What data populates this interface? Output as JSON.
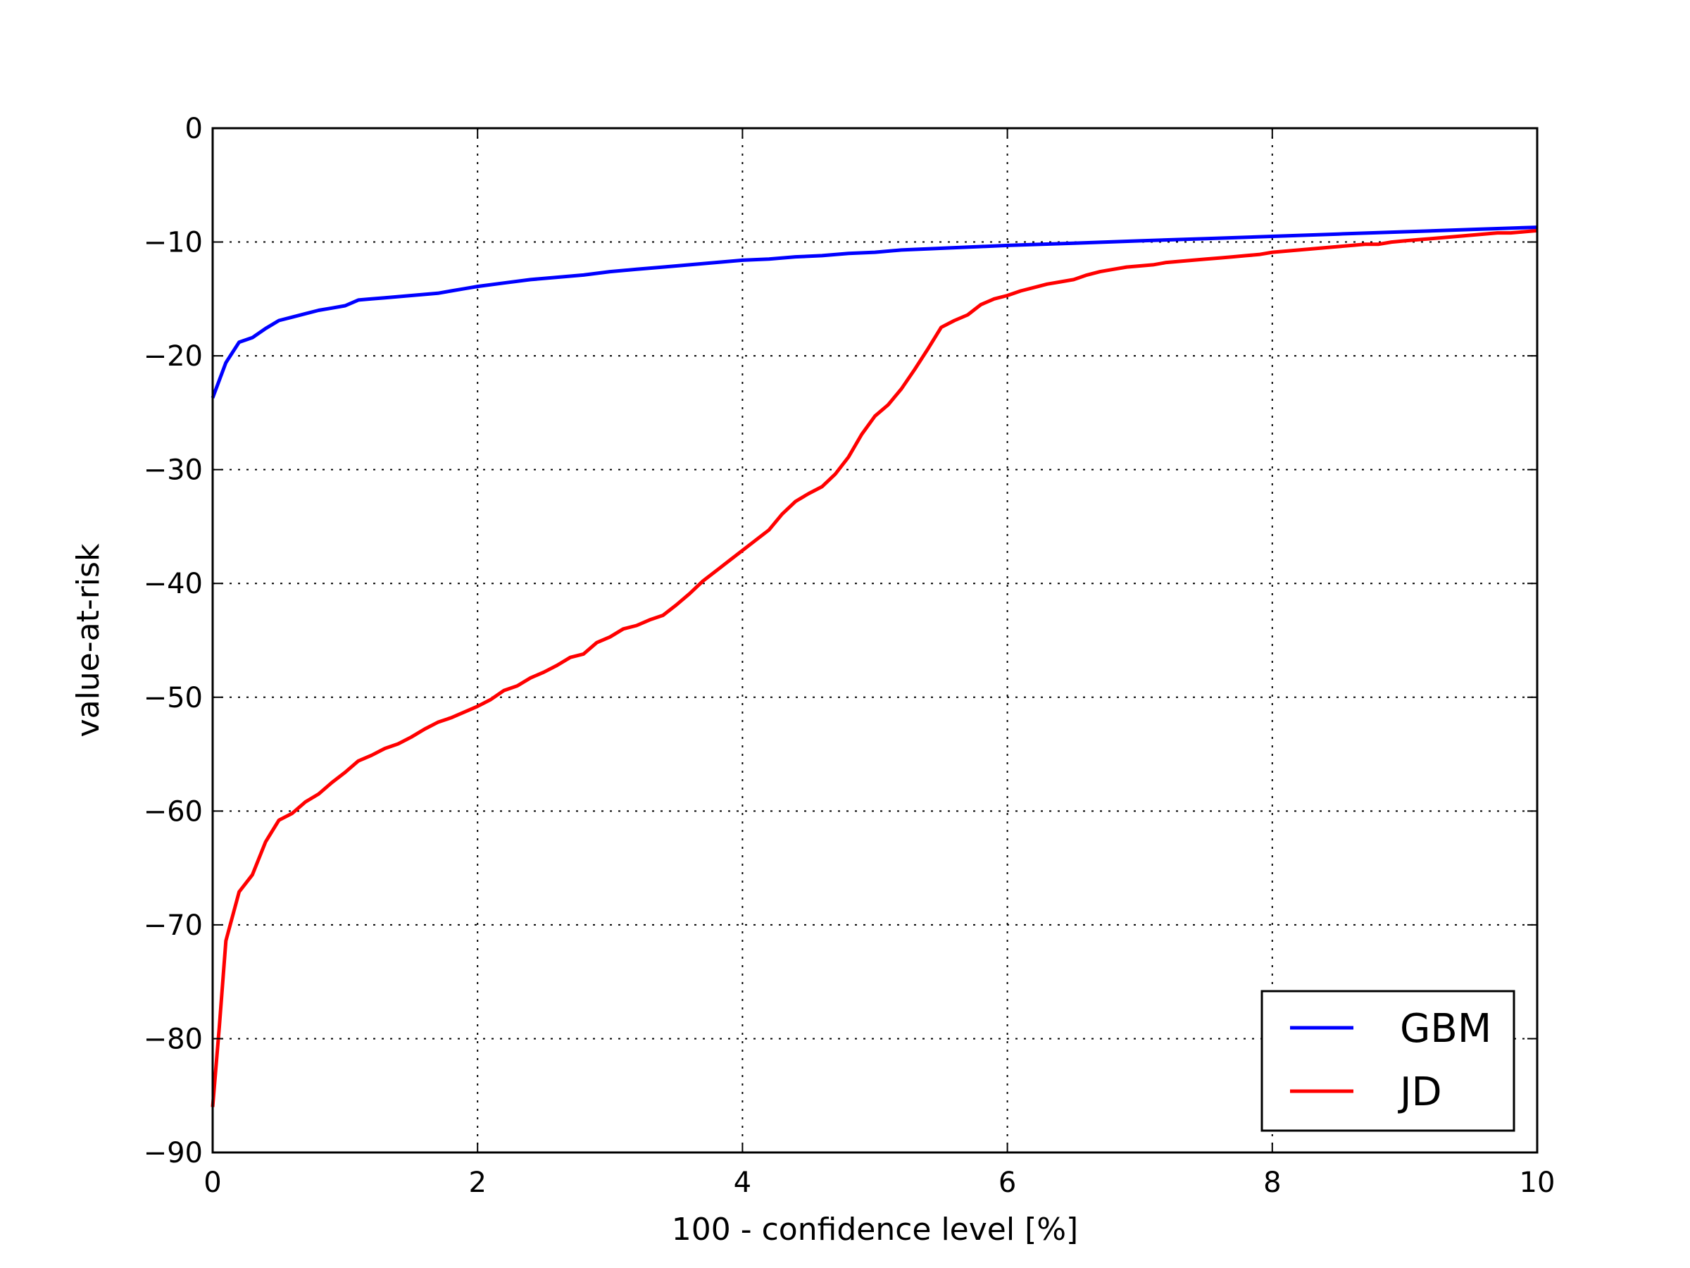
{
  "chart_data": {
    "type": "line",
    "title": "",
    "xlabel": "100 - confidence level [%]",
    "ylabel": "value-at-risk",
    "xlim": [
      0,
      10
    ],
    "ylim": [
      -90,
      0
    ],
    "xticks": [
      0,
      2,
      4,
      6,
      8,
      10
    ],
    "xtick_labels": [
      "0",
      "2",
      "4",
      "6",
      "8",
      "10"
    ],
    "yticks": [
      0,
      -10,
      -20,
      -30,
      -40,
      -50,
      -60,
      -70,
      -80,
      -90
    ],
    "ytick_labels": [
      "0",
      "−10",
      "−20",
      "−30",
      "−40",
      "−50",
      "−60",
      "−70",
      "−80",
      "−90"
    ],
    "grid": true,
    "legend_position": "bottom-right",
    "series": [
      {
        "name": "GBM",
        "color": "#0000ff",
        "x": [
          0,
          0.1,
          0.2,
          0.3,
          0.4,
          0.5,
          0.6,
          0.7,
          0.8,
          0.9,
          1.0,
          1.1,
          1.2,
          1.3,
          1.4,
          1.5,
          1.6,
          1.7,
          1.8,
          1.9,
          2.0,
          2.2,
          2.4,
          2.6,
          2.8,
          3.0,
          3.2,
          3.4,
          3.6,
          3.8,
          4.0,
          4.2,
          4.4,
          4.6,
          4.8,
          5.0,
          5.2,
          5.4,
          5.6,
          5.8,
          6.0,
          6.5,
          7.0,
          7.5,
          8.0,
          8.5,
          9.0,
          9.5,
          10.0
        ],
        "y": [
          -23.7,
          -20.6,
          -18.8,
          -18.4,
          -17.6,
          -16.9,
          -16.6,
          -16.3,
          -16.0,
          -15.8,
          -15.6,
          -15.1,
          -15.0,
          -14.9,
          -14.8,
          -14.7,
          -14.6,
          -14.5,
          -14.3,
          -14.1,
          -13.9,
          -13.6,
          -13.3,
          -13.1,
          -12.9,
          -12.6,
          -12.4,
          -12.2,
          -12.0,
          -11.8,
          -11.6,
          -11.5,
          -11.3,
          -11.2,
          -11.0,
          -10.9,
          -10.7,
          -10.6,
          -10.5,
          -10.4,
          -10.3,
          -10.1,
          -9.9,
          -9.7,
          -9.5,
          -9.3,
          -9.1,
          -8.9,
          -8.7
        ]
      },
      {
        "name": "JD",
        "color": "#ff0000",
        "x": [
          0,
          0.05,
          0.1,
          0.2,
          0.3,
          0.4,
          0.5,
          0.6,
          0.7,
          0.8,
          0.9,
          1.0,
          1.1,
          1.2,
          1.3,
          1.4,
          1.5,
          1.6,
          1.7,
          1.8,
          1.9,
          2.0,
          2.1,
          2.2,
          2.3,
          2.4,
          2.5,
          2.6,
          2.7,
          2.8,
          2.9,
          3.0,
          3.1,
          3.2,
          3.3,
          3.4,
          3.5,
          3.6,
          3.7,
          3.8,
          3.9,
          4.0,
          4.1,
          4.2,
          4.3,
          4.4,
          4.5,
          4.6,
          4.7,
          4.8,
          4.9,
          5.0,
          5.1,
          5.2,
          5.3,
          5.4,
          5.5,
          5.6,
          5.7,
          5.8,
          5.9,
          6.0,
          6.1,
          6.2,
          6.3,
          6.4,
          6.5,
          6.6,
          6.7,
          6.8,
          6.9,
          7.0,
          7.1,
          7.2,
          7.3,
          7.4,
          7.5,
          7.6,
          7.7,
          7.8,
          7.9,
          8.0,
          8.1,
          8.2,
          8.3,
          8.4,
          8.5,
          8.6,
          8.7,
          8.8,
          8.9,
          9.0,
          9.1,
          9.2,
          9.3,
          9.4,
          9.5,
          9.6,
          9.7,
          9.8,
          9.9,
          10.0
        ],
        "y": [
          -86.0,
          -79.0,
          -71.4,
          -67.1,
          -65.6,
          -62.7,
          -60.8,
          -60.2,
          -59.2,
          -58.5,
          -57.5,
          -56.6,
          -55.6,
          -55.1,
          -54.5,
          -54.1,
          -53.5,
          -52.8,
          -52.2,
          -51.8,
          -51.3,
          -50.8,
          -50.2,
          -49.4,
          -49.0,
          -48.3,
          -47.8,
          -47.2,
          -46.5,
          -46.2,
          -45.2,
          -44.7,
          -44.0,
          -43.7,
          -43.2,
          -42.8,
          -41.9,
          -40.9,
          -39.8,
          -38.9,
          -38.0,
          -37.1,
          -36.2,
          -35.3,
          -33.9,
          -32.8,
          -32.1,
          -31.5,
          -30.4,
          -28.9,
          -26.9,
          -25.3,
          -24.3,
          -22.9,
          -21.2,
          -19.4,
          -17.5,
          -16.9,
          -16.4,
          -15.5,
          -15.0,
          -14.7,
          -14.3,
          -14.0,
          -13.7,
          -13.5,
          -13.3,
          -12.9,
          -12.6,
          -12.4,
          -12.2,
          -12.1,
          -12.0,
          -11.8,
          -11.7,
          -11.6,
          -11.5,
          -11.4,
          -11.3,
          -11.2,
          -11.1,
          -10.9,
          -10.8,
          -10.7,
          -10.6,
          -10.5,
          -10.4,
          -10.3,
          -10.2,
          -10.2,
          -10.0,
          -9.9,
          -9.8,
          -9.7,
          -9.6,
          -9.5,
          -9.4,
          -9.3,
          -9.2,
          -9.2,
          -9.1,
          -9.0
        ]
      }
    ]
  }
}
